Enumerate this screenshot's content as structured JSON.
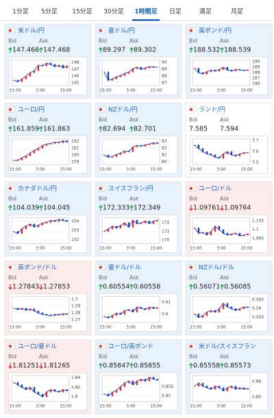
{
  "tabs": {
    "items": [
      "1分足",
      "5分足",
      "15分足",
      "30分足",
      "1時間足",
      "日足",
      "週足",
      "月足"
    ],
    "selected": 4
  },
  "bid_label": "Bid",
  "ask_label": "Ask",
  "x_labels": [
    "15:00",
    "3:00",
    "15:00"
  ],
  "cards": [
    {
      "name": "米ドル/円",
      "bid": 147.466,
      "ask": 147.468,
      "trend": "up",
      "ylim": [
        144.6,
        148.4
      ],
      "yticks": [
        148,
        147,
        146,
        145
      ],
      "values": [
        145.4,
        145.2,
        145.6,
        146.0,
        146.5,
        146.8,
        147.6,
        147.5,
        147.9,
        147.7,
        147.4,
        147.6,
        147.2,
        147.5
      ]
    },
    {
      "name": "豪ドル/円",
      "bid": 89.297,
      "ask": 89.302,
      "trend": "up",
      "ylim": [
        86.6,
        90.4
      ],
      "yticks": [
        90,
        89,
        88,
        87
      ],
      "values": [
        88.6,
        87.4,
        87.6,
        87.9,
        88.1,
        88.4,
        88.6,
        89.1,
        89.3,
        89.0,
        89.2,
        89.4,
        89.3,
        89.3
      ]
    },
    {
      "name": "英ポンド/円",
      "bid": 188.532,
      "ask": 188.539,
      "trend": "up",
      "ylim": [
        185.6,
        190.4
      ],
      "yticks": [
        190,
        189,
        188,
        187,
        186
      ],
      "values": [
        188.8,
        188.0,
        187.8,
        188.2,
        188.5,
        188.3,
        188.6,
        189.0,
        188.5,
        188.3,
        188.6,
        188.5,
        188.4,
        188.5
      ]
    },
    {
      "name": "ユーロ/円",
      "bid": 161.859,
      "ask": 161.863,
      "trend": "up",
      "ylim": [
        158.6,
        162.4
      ],
      "yticks": [
        162,
        161,
        160,
        159
      ],
      "values": [
        159.2,
        159.3,
        159.6,
        159.9,
        160.3,
        160.7,
        161.0,
        161.4,
        161.6,
        161.7,
        161.9,
        161.8,
        162.1,
        161.9
      ]
    },
    {
      "name": "NZドル/円",
      "bid": 82.694,
      "ask": 82.701,
      "trend": "up",
      "ylim": [
        79.6,
        83.4
      ],
      "yticks": [
        83,
        82,
        81,
        80
      ],
      "values": [
        81.0,
        80.7,
        80.8,
        81.1,
        81.3,
        81.6,
        81.5,
        82.2,
        82.4,
        82.3,
        82.5,
        82.6,
        82.8,
        82.7
      ]
    },
    {
      "name": "ランド/円",
      "bid": 7.585,
      "ask": 7.594,
      "trend": null,
      "ylim": [
        7.48,
        7.72
      ],
      "yticks": [
        7.7,
        7.6,
        7.5
      ],
      "values": [
        7.66,
        7.63,
        7.6,
        7.58,
        7.57,
        7.55,
        7.54,
        7.58,
        7.6,
        7.57,
        7.56,
        7.58,
        7.59,
        7.59
      ]
    },
    {
      "name": "カナダドル/円",
      "bid": 104.039,
      "ask": 104.045,
      "trend": "up",
      "ylim": [
        101.6,
        104.4
      ],
      "yticks": [
        104,
        103,
        102
      ],
      "values": [
        102.9,
        102.7,
        103.2,
        103.5,
        103.7,
        103.4,
        103.6,
        103.8,
        103.9,
        104.1,
        104.0,
        104.2,
        104.1,
        104.0
      ]
    },
    {
      "name": "スイスフラン/円",
      "bid": 172.333,
      "ask": 172.349,
      "trend": "up",
      "ylim": [
        169.6,
        172.6
      ],
      "yticks": [
        172,
        171,
        170
      ],
      "values": [
        171.0,
        171.3,
        171.6,
        171.4,
        171.7,
        172.0,
        171.5,
        172.3,
        171.9,
        172.0,
        172.2,
        171.9,
        172.2,
        172.3
      ]
    },
    {
      "name": "ユーロ/ドル",
      "bid": 1.09761,
      "ask": 1.09764,
      "trend": "down",
      "ylim": [
        1.092,
        1.107
      ],
      "yticks": [
        1.105,
        1.1,
        1.095
      ],
      "values": [
        1.101,
        1.098,
        1.0985,
        1.097,
        1.099,
        1.102,
        1.1,
        1.098,
        1.097,
        1.0975,
        1.098,
        1.0965,
        1.097,
        1.0976
      ]
    },
    {
      "name": "英ポンド/ドル",
      "bid": 1.27843,
      "ask": 1.27853,
      "trend": "down",
      "ylim": [
        1.266,
        1.304
      ],
      "yticks": [
        1.3,
        1.29,
        1.28,
        1.27
      ],
      "values": [
        1.287,
        1.285,
        1.287,
        1.284,
        1.286,
        1.283,
        1.28,
        1.278,
        1.277,
        1.276,
        1.278,
        1.277,
        1.279,
        1.278
      ]
    },
    {
      "name": "豪ドル/ドル",
      "bid": 0.60554,
      "ask": 0.60558,
      "trend": "up",
      "ylim": [
        0.593,
        0.615
      ],
      "yticks": [
        0.61,
        0.6
      ],
      "values": [
        0.598,
        0.597,
        0.599,
        0.601,
        0.6,
        0.603,
        0.604,
        0.602,
        0.606,
        0.605,
        0.604,
        0.606,
        0.605,
        0.6055
      ]
    },
    {
      "name": "NZドル/ドル",
      "bid": 0.56071,
      "ask": 0.56085,
      "trend": "up",
      "ylim": [
        0.552,
        0.567
      ],
      "yticks": [
        0.565,
        0.56,
        0.555
      ],
      "values": [
        0.557,
        0.555,
        0.556,
        0.558,
        0.559,
        0.558,
        0.56,
        0.563,
        0.561,
        0.56,
        0.559,
        0.56,
        0.561,
        0.5607
      ]
    },
    {
      "name": "ユーロ/豪ドル",
      "bid": 1.81251,
      "ask": 1.81265,
      "trend": "down",
      "ylim": [
        1.79,
        1.845
      ],
      "yticks": [
        1.84,
        1.82,
        1.8
      ],
      "values": [
        1.83,
        1.825,
        1.82,
        1.815,
        1.82,
        1.81,
        1.805,
        1.8,
        1.81,
        1.815,
        1.812,
        1.81,
        1.815,
        1.8125
      ]
    },
    {
      "name": "ユーロ/英ポンド",
      "bid": 0.85847,
      "ask": 0.85855,
      "trend": "up",
      "ylim": [
        0.847,
        0.861
      ],
      "yticks": [
        0.855,
        0.85
      ],
      "values": [
        0.851,
        0.85,
        0.852,
        0.853,
        0.855,
        0.857,
        0.858,
        0.856,
        0.858,
        0.859,
        0.858,
        0.86,
        0.859,
        0.8585
      ]
    },
    {
      "name": "米ドル/スイスフラン",
      "bid": 0.85558,
      "ask": 0.85573,
      "trend": "up",
      "ylim": [
        0.847,
        0.864
      ],
      "yticks": [
        0.86,
        0.85
      ],
      "values": [
        0.857,
        0.859,
        0.857,
        0.856,
        0.855,
        0.857,
        0.856,
        0.854,
        0.856,
        0.857,
        0.855,
        0.856,
        0.855,
        0.8556
      ]
    }
  ]
}
